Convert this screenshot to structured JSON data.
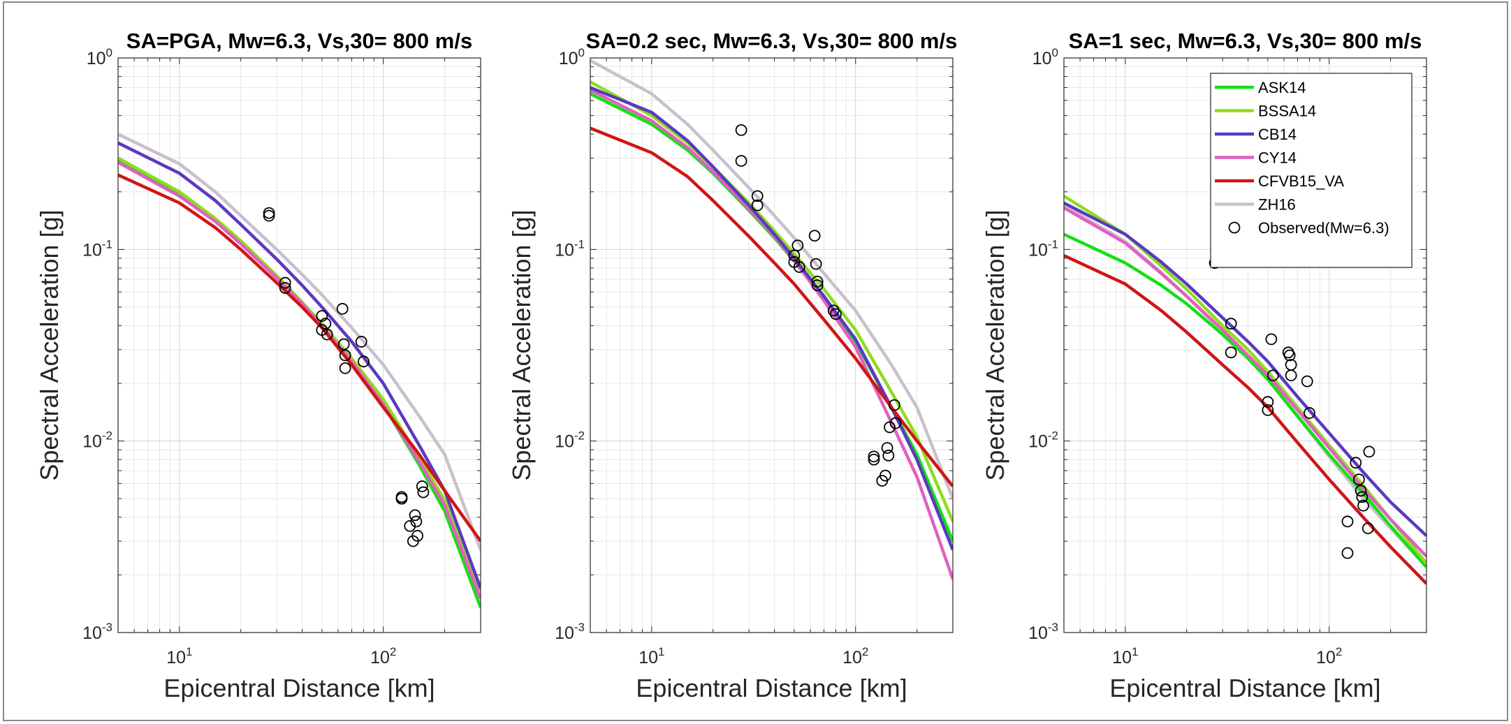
{
  "chart_data": [
    {
      "type": "line",
      "title": "SA=PGA, Mw=6.3, Vs,30= 800 m/s",
      "xlabel": "Epicentral Distance [km]",
      "ylabel": "Spectral Acceleration [g]",
      "xscale": "log",
      "yscale": "log",
      "xlim": [
        5,
        300
      ],
      "ylim": [
        0.001,
        1
      ],
      "grid": true,
      "legend": null,
      "series": [
        {
          "name": "ASK14",
          "color": "#14e014",
          "x": [
            5,
            10,
            15,
            20,
            30,
            40,
            50,
            70,
            100,
            150,
            200,
            300
          ],
          "y": [
            0.29,
            0.195,
            0.142,
            0.108,
            0.071,
            0.052,
            0.04,
            0.026,
            0.0155,
            0.0075,
            0.0043,
            0.00135
          ]
        },
        {
          "name": "BSSA14",
          "color": "#8fdc1e",
          "x": [
            5,
            10,
            15,
            20,
            30,
            40,
            50,
            70,
            100,
            150,
            200,
            300
          ],
          "y": [
            0.3,
            0.2,
            0.145,
            0.111,
            0.073,
            0.053,
            0.041,
            0.027,
            0.0165,
            0.0082,
            0.0049,
            0.00165
          ]
        },
        {
          "name": "CB14",
          "color": "#5b39c2",
          "x": [
            5,
            10,
            15,
            20,
            30,
            40,
            50,
            70,
            100,
            150,
            200,
            300
          ],
          "y": [
            0.36,
            0.25,
            0.18,
            0.135,
            0.089,
            0.065,
            0.05,
            0.033,
            0.02,
            0.0095,
            0.0055,
            0.0017
          ]
        },
        {
          "name": "CY14",
          "color": "#e060c0",
          "x": [
            5,
            10,
            15,
            20,
            30,
            40,
            50,
            70,
            100,
            150,
            200,
            300
          ],
          "y": [
            0.285,
            0.19,
            0.14,
            0.107,
            0.071,
            0.052,
            0.04,
            0.026,
            0.0155,
            0.0078,
            0.0046,
            0.0015
          ]
        },
        {
          "name": "CFVB15_VA",
          "color": "#d01515",
          "x": [
            5,
            10,
            15,
            20,
            30,
            40,
            50,
            70,
            100,
            150,
            200,
            300
          ],
          "y": [
            0.245,
            0.175,
            0.13,
            0.1,
            0.067,
            0.05,
            0.039,
            0.025,
            0.015,
            0.0085,
            0.0055,
            0.003
          ]
        },
        {
          "name": "ZH16",
          "color": "#c8c0cc",
          "x": [
            5,
            10,
            15,
            20,
            30,
            40,
            50,
            70,
            100,
            150,
            200,
            300
          ],
          "y": [
            0.4,
            0.28,
            0.2,
            0.15,
            0.1,
            0.074,
            0.058,
            0.039,
            0.025,
            0.0135,
            0.0085,
            0.0027
          ]
        }
      ],
      "observed": {
        "name": "Observed(Mw=6.3)",
        "x": [
          27.5,
          27.5,
          33,
          33,
          50,
          50,
          52,
          53,
          63,
          64,
          65,
          65,
          78,
          80,
          123,
          123,
          135,
          140,
          143,
          145,
          147,
          155,
          157
        ],
        "y": [
          0.155,
          0.15,
          0.067,
          0.063,
          0.045,
          0.038,
          0.041,
          0.036,
          0.049,
          0.032,
          0.028,
          0.024,
          0.033,
          0.026,
          0.0051,
          0.005,
          0.0036,
          0.003,
          0.0041,
          0.0038,
          0.0032,
          0.0058,
          0.0054
        ]
      }
    },
    {
      "type": "line",
      "title": "SA=0.2 sec, Mw=6.3, Vs,30= 800 m/s",
      "xlabel": "Epicentral Distance [km]",
      "ylabel": "Spectral Acceleration [g]",
      "xscale": "log",
      "yscale": "log",
      "xlim": [
        5,
        300
      ],
      "ylim": [
        0.001,
        1
      ],
      "grid": true,
      "legend": null,
      "series": [
        {
          "name": "ASK14",
          "color": "#14e014",
          "x": [
            5,
            10,
            15,
            20,
            30,
            40,
            50,
            70,
            100,
            150,
            200,
            300
          ],
          "y": [
            0.65,
            0.45,
            0.33,
            0.25,
            0.16,
            0.115,
            0.087,
            0.055,
            0.033,
            0.015,
            0.0085,
            0.003
          ]
        },
        {
          "name": "BSSA14",
          "color": "#8fdc1e",
          "x": [
            5,
            10,
            15,
            20,
            30,
            40,
            50,
            70,
            100,
            150,
            200,
            300
          ],
          "y": [
            0.75,
            0.5,
            0.36,
            0.27,
            0.175,
            0.125,
            0.095,
            0.062,
            0.038,
            0.018,
            0.0105,
            0.0038
          ]
        },
        {
          "name": "CB14",
          "color": "#5b39c2",
          "x": [
            5,
            10,
            15,
            20,
            30,
            40,
            50,
            70,
            100,
            150,
            200,
            300
          ],
          "y": [
            0.7,
            0.52,
            0.37,
            0.27,
            0.17,
            0.12,
            0.09,
            0.057,
            0.034,
            0.015,
            0.008,
            0.0027
          ]
        },
        {
          "name": "CY14",
          "color": "#e060c0",
          "x": [
            5,
            10,
            15,
            20,
            30,
            40,
            50,
            70,
            100,
            150,
            200,
            300
          ],
          "y": [
            0.68,
            0.47,
            0.34,
            0.255,
            0.163,
            0.117,
            0.088,
            0.054,
            0.031,
            0.0125,
            0.0065,
            0.0019
          ]
        },
        {
          "name": "CFVB15_VA",
          "color": "#d01515",
          "x": [
            5,
            10,
            15,
            20,
            30,
            40,
            50,
            70,
            100,
            150,
            200,
            300
          ],
          "y": [
            0.43,
            0.32,
            0.24,
            0.18,
            0.117,
            0.085,
            0.066,
            0.043,
            0.027,
            0.015,
            0.01,
            0.0058
          ]
        },
        {
          "name": "ZH16",
          "color": "#c8c0cc",
          "x": [
            5,
            10,
            15,
            20,
            30,
            40,
            50,
            70,
            100,
            150,
            200,
            300
          ],
          "y": [
            0.97,
            0.65,
            0.45,
            0.33,
            0.21,
            0.15,
            0.115,
            0.075,
            0.048,
            0.025,
            0.015,
            0.005
          ]
        }
      ],
      "observed": {
        "name": "Observed(Mw=6.3)",
        "x": [
          27.5,
          27.5,
          33,
          33,
          50,
          50,
          52,
          53,
          63,
          64,
          65,
          65,
          78,
          80,
          123,
          123,
          135,
          140,
          143,
          145,
          147,
          155,
          157
        ],
        "y": [
          0.42,
          0.29,
          0.19,
          0.17,
          0.093,
          0.086,
          0.105,
          0.081,
          0.118,
          0.084,
          0.068,
          0.065,
          0.048,
          0.046,
          0.0083,
          0.008,
          0.0062,
          0.0066,
          0.0092,
          0.0084,
          0.0118,
          0.0154,
          0.0124
        ]
      }
    },
    {
      "type": "line",
      "title": "SA=1 sec, Mw=6.3, Vs,30= 800 m/s",
      "xlabel": "Epicentral Distance [km]",
      "ylabel": "Spectral Acceleration [g]",
      "xscale": "log",
      "yscale": "log",
      "xlim": [
        5,
        300
      ],
      "ylim": [
        0.001,
        1
      ],
      "grid": true,
      "legend": "top-right",
      "series": [
        {
          "name": "ASK14",
          "color": "#14e014",
          "x": [
            5,
            10,
            15,
            20,
            30,
            40,
            50,
            70,
            100,
            150,
            200,
            300
          ],
          "y": [
            0.12,
            0.085,
            0.065,
            0.052,
            0.036,
            0.027,
            0.021,
            0.0135,
            0.0085,
            0.0052,
            0.0036,
            0.0022
          ]
        },
        {
          "name": "BSSA14",
          "color": "#8fdc1e",
          "x": [
            5,
            10,
            15,
            20,
            30,
            40,
            50,
            70,
            100,
            150,
            200,
            300
          ],
          "y": [
            0.19,
            0.12,
            0.082,
            0.062,
            0.04,
            0.03,
            0.023,
            0.015,
            0.0095,
            0.0057,
            0.0039,
            0.0023
          ]
        },
        {
          "name": "CB14",
          "color": "#5b39c2",
          "x": [
            5,
            10,
            15,
            20,
            30,
            40,
            50,
            70,
            100,
            150,
            200,
            300
          ],
          "y": [
            0.175,
            0.12,
            0.086,
            0.066,
            0.044,
            0.033,
            0.026,
            0.017,
            0.011,
            0.0067,
            0.0048,
            0.0032
          ]
        },
        {
          "name": "CY14",
          "color": "#e060c0",
          "x": [
            5,
            10,
            15,
            20,
            30,
            40,
            50,
            70,
            100,
            150,
            200,
            300
          ],
          "y": [
            0.165,
            0.108,
            0.075,
            0.057,
            0.038,
            0.028,
            0.022,
            0.0145,
            0.0092,
            0.0055,
            0.0039,
            0.0025
          ]
        },
        {
          "name": "CFVB15_VA",
          "color": "#d01515",
          "x": [
            5,
            10,
            15,
            20,
            30,
            40,
            50,
            70,
            100,
            150,
            200,
            300
          ],
          "y": [
            0.093,
            0.066,
            0.048,
            0.037,
            0.025,
            0.019,
            0.015,
            0.0098,
            0.0063,
            0.0039,
            0.0028,
            0.0018
          ]
        },
        {
          "name": "ZH16",
          "color": "#c8c0cc",
          "x": [
            5,
            10,
            15,
            20,
            30,
            40,
            50,
            70,
            100,
            150,
            200,
            300
          ],
          "y": [
            0.17,
            0.11,
            0.076,
            0.057,
            0.037,
            0.027,
            0.021,
            0.0134,
            0.0083,
            0.0049,
            0.0035,
            0.0022
          ]
        }
      ],
      "observed": {
        "name": "Observed(Mw=6.3)",
        "x": [
          27.5,
          33,
          33,
          50,
          50,
          52,
          53,
          63,
          64,
          65,
          65,
          78,
          80,
          123,
          123,
          135,
          140,
          143,
          145,
          147,
          155,
          157
        ],
        "y": [
          0.085,
          0.041,
          0.029,
          0.016,
          0.0145,
          0.034,
          0.022,
          0.029,
          0.028,
          0.025,
          0.022,
          0.0205,
          0.014,
          0.0038,
          0.0026,
          0.0077,
          0.0063,
          0.0055,
          0.0051,
          0.0046,
          0.0035,
          0.0088
        ]
      }
    }
  ]
}
